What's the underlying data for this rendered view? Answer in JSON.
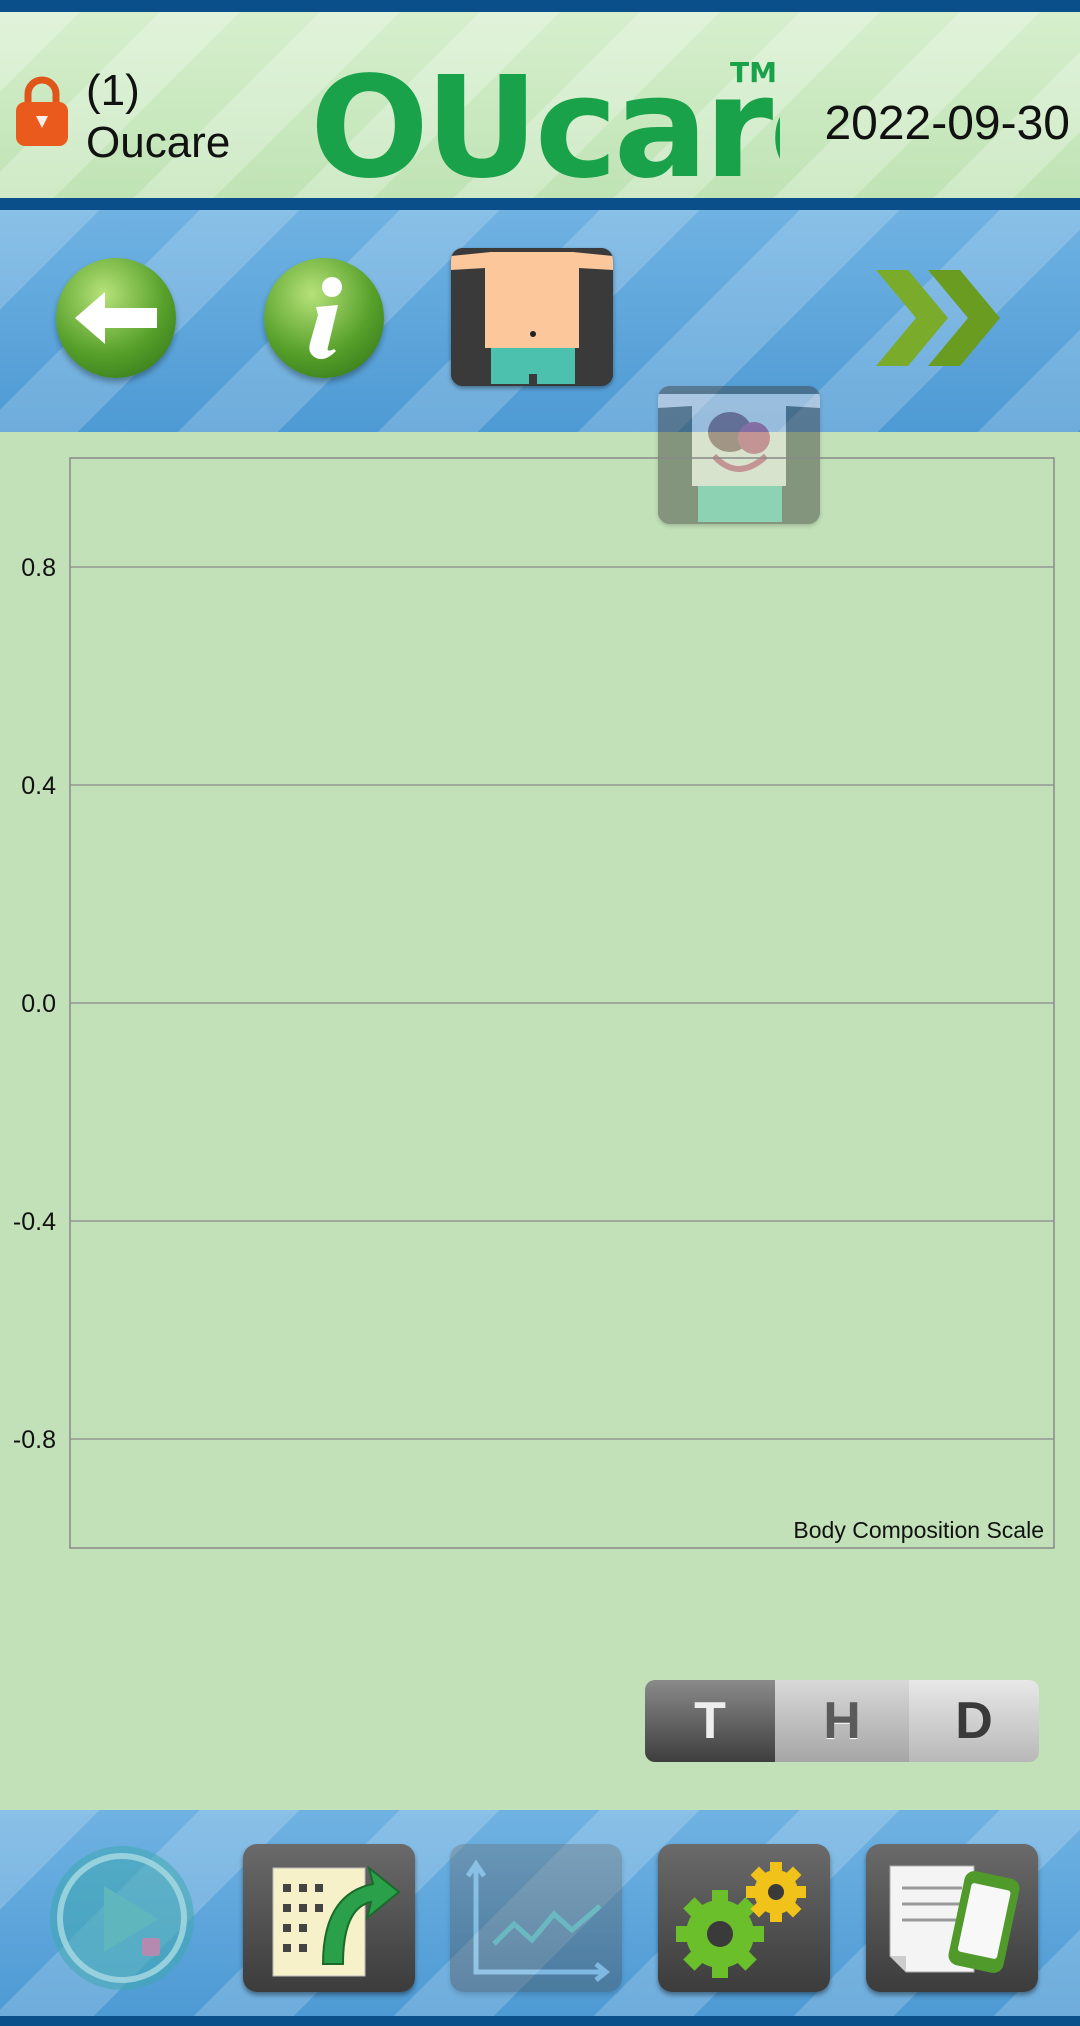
{
  "header": {
    "user_number": "(1)",
    "user_name": "Oucare",
    "logo_text": "OUcare",
    "trademark": "TM",
    "date": "2022-09-30"
  },
  "toolbar": {
    "buttons": [
      {
        "icon": "back-arrow-icon"
      },
      {
        "icon": "info-icon"
      },
      {
        "icon": "body-front-icon"
      },
      {
        "icon": "body-organs-icon"
      },
      {
        "icon": "double-chevron-right-icon"
      }
    ]
  },
  "chart_data": {
    "type": "line",
    "title": "",
    "annotation": "Body Composition Scale",
    "xlabel": "",
    "ylabel": "",
    "ylim": [
      -1.0,
      1.0
    ],
    "yticks": [
      "0.8",
      "0.4",
      "0.0",
      "-0.4",
      "-0.8"
    ],
    "ytick_values": [
      0.8,
      0.4,
      0.0,
      -0.4,
      -0.8
    ],
    "series": [],
    "grid": true
  },
  "segment": {
    "options": [
      "T",
      "H",
      "D"
    ],
    "selected": "H"
  },
  "bottombar": {
    "buttons": [
      {
        "icon": "play-icon"
      },
      {
        "icon": "export-data-icon"
      },
      {
        "icon": "trend-chart-icon"
      },
      {
        "icon": "settings-gears-icon"
      },
      {
        "icon": "document-phone-icon"
      }
    ]
  },
  "colors": {
    "header_bar": "#0b4f8a",
    "logo_green": "#19a24a",
    "chart_bg": "#c2e1b8",
    "toolbar_blue": "#5aa4da"
  }
}
